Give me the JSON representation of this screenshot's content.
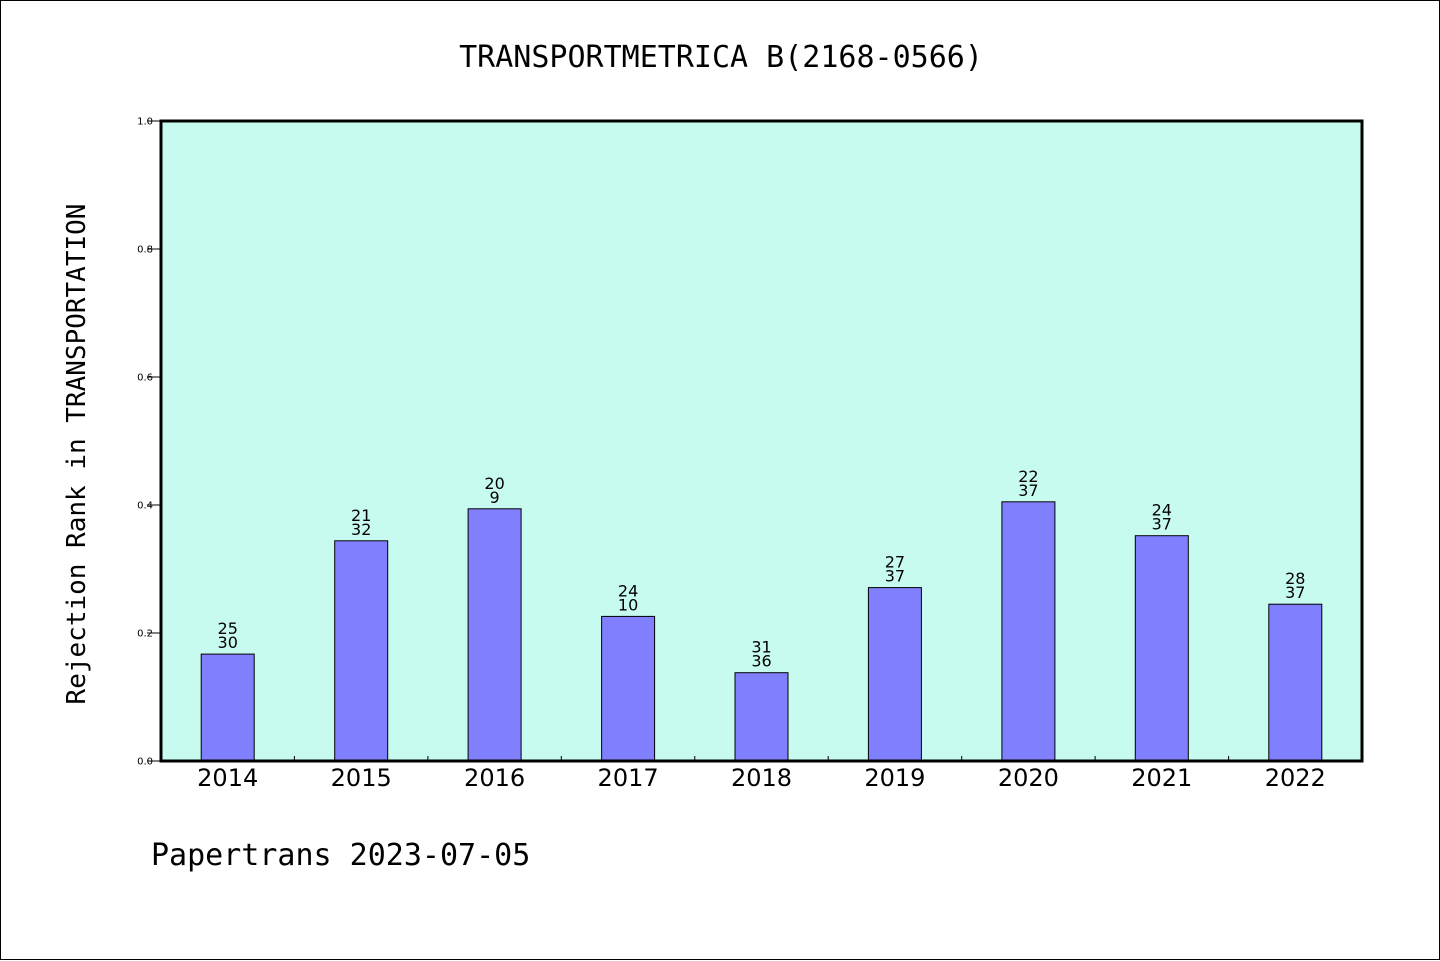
{
  "colors": {
    "plot_background": "#c8fbef",
    "bar_fill": "#8080ff",
    "bar_stroke": "#000000",
    "axis": "#000000"
  },
  "footer": {
    "text": "Papertrans 2023-07-05"
  },
  "chart_data": {
    "type": "bar",
    "title": "TRANSPORTMETRICA B(2168-0566)",
    "xlabel": "",
    "ylabel": "Rejection Rank in TRANSPORTATION",
    "ylim": [
      0,
      1.0
    ],
    "yticks": [
      "0.0",
      "0.2",
      "0.4",
      "0.6",
      "0.8",
      "1.0"
    ],
    "grid": false,
    "categories": [
      "2014",
      "2015",
      "2016",
      "2017",
      "2018",
      "2019",
      "2020",
      "2021",
      "2022"
    ],
    "values": [
      0.167,
      0.344,
      0.394,
      0.226,
      0.138,
      0.271,
      0.405,
      0.352,
      0.245
    ],
    "annotations": [
      [
        "25",
        "30"
      ],
      [
        "21",
        "32"
      ],
      [
        "20",
        "9"
      ],
      [
        "24",
        "10"
      ],
      [
        "31",
        "36"
      ],
      [
        "27",
        "37"
      ],
      [
        "22",
        "37"
      ],
      [
        "24",
        "37"
      ],
      [
        "28",
        "37"
      ]
    ]
  }
}
